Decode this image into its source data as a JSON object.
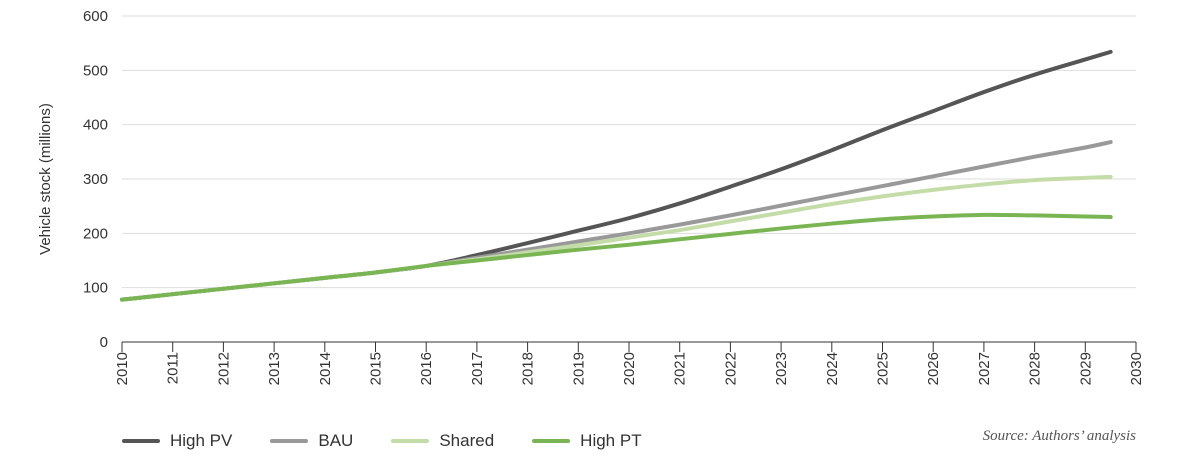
{
  "chart_data": {
    "type": "line",
    "x": [
      2010,
      2011,
      2012,
      2013,
      2014,
      2015,
      2016,
      2017,
      2018,
      2019,
      2020,
      2021,
      2022,
      2023,
      2024,
      2025,
      2026,
      2027,
      2028,
      2029,
      2029.5
    ],
    "x_ticks": [
      "2010",
      "2011",
      "2012",
      "2013",
      "2014",
      "2015",
      "2016",
      "2017",
      "2018",
      "2019",
      "2020",
      "2021",
      "2022",
      "2023",
      "2024",
      "2025",
      "2026",
      "2027",
      "2028",
      "2029",
      "2030"
    ],
    "xlim": [
      2010,
      2030
    ],
    "ylabel": "Vehicle stock (millions)",
    "ylim": [
      0,
      600
    ],
    "y_ticks": [
      "0",
      "100",
      "200",
      "300",
      "400",
      "500",
      "600"
    ],
    "grid": "horizontal",
    "legend_position": "bottom-left",
    "series": [
      {
        "name": "High PV",
        "color": "#555555",
        "values": [
          78,
          88,
          98,
          108,
          118,
          128,
          140,
          160,
          182,
          205,
          228,
          255,
          286,
          318,
          353,
          390,
          425,
          460,
          492,
          520,
          534
        ]
      },
      {
        "name": "BAU",
        "color": "#999999",
        "values": [
          78,
          88,
          98,
          108,
          118,
          128,
          140,
          155,
          170,
          185,
          200,
          216,
          233,
          251,
          269,
          287,
          305,
          323,
          341,
          358,
          368
        ]
      },
      {
        "name": "Shared",
        "color": "#c4dca8",
        "values": [
          78,
          88,
          98,
          108,
          118,
          128,
          140,
          152,
          165,
          178,
          192,
          206,
          222,
          238,
          254,
          268,
          280,
          290,
          298,
          302,
          304
        ]
      },
      {
        "name": "High PT",
        "color": "#7ab554",
        "values": [
          78,
          88,
          98,
          108,
          118,
          128,
          140,
          150,
          160,
          170,
          179,
          189,
          199,
          209,
          218,
          226,
          231,
          234,
          233,
          231,
          230
        ]
      }
    ]
  },
  "source": "Source: Authors’ analysis"
}
